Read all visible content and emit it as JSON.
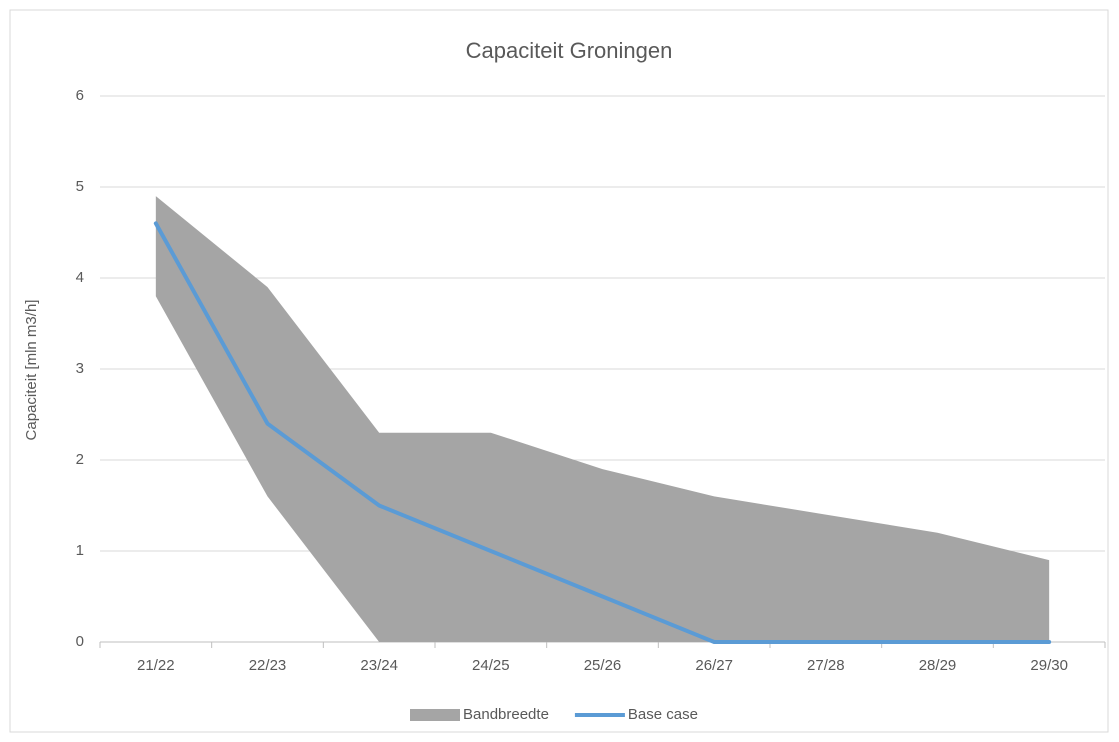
{
  "chart_data": {
    "type": "band-line",
    "title": "Capaciteit Groningen",
    "y_label": "Capaciteit [mln m3/h]",
    "categories": [
      "21/22",
      "22/23",
      "23/24",
      "24/25",
      "25/26",
      "26/27",
      "27/28",
      "28/29",
      "29/30"
    ],
    "series": [
      {
        "name": "Bandbreedte",
        "color": "#a5a5a5",
        "low": [
          3.8,
          1.6,
          0,
          0,
          0,
          0,
          0,
          0,
          0
        ],
        "high": [
          4.9,
          3.9,
          2.3,
          2.3,
          1.9,
          1.6,
          1.4,
          1.2,
          0.9
        ]
      },
      {
        "name": "Base case",
        "color": "#5b9bd5",
        "values": [
          4.6,
          2.4,
          1.5,
          1.0,
          0.5,
          0,
          0,
          0,
          0
        ]
      }
    ],
    "ylim": [
      0,
      6
    ],
    "yticks": [
      0,
      1,
      2,
      3,
      4,
      5,
      6
    ],
    "grid": true,
    "legend": "bottom"
  }
}
